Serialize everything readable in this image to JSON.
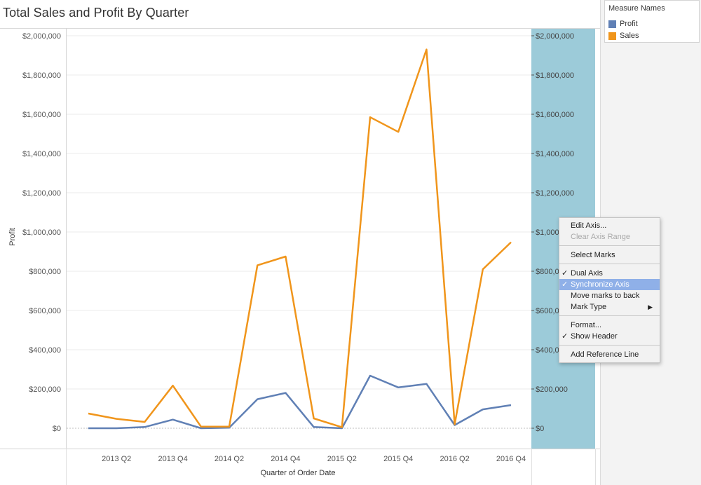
{
  "title": "Total Sales and Profit By Quarter",
  "legend": {
    "title": "Measure Names",
    "items": [
      {
        "label": "Profit",
        "color": "#6080b5"
      },
      {
        "label": "Sales",
        "color": "#f0951b"
      }
    ]
  },
  "chart_data": {
    "type": "line",
    "title": "Total Sales and Profit By Quarter",
    "xlabel": "Quarter of Order Date",
    "ylabel": "Profit",
    "x": [
      "2013 Q1",
      "2013 Q2",
      "2013 Q3",
      "2013 Q4",
      "2014 Q1",
      "2014 Q2",
      "2014 Q3",
      "2014 Q4",
      "2015 Q1",
      "2015 Q2",
      "2015 Q3",
      "2015 Q4",
      "2016 Q1",
      "2016 Q2",
      "2016 Q3",
      "2016 Q4"
    ],
    "x_tick_labels": [
      "2013 Q2",
      "2013 Q4",
      "2014 Q2",
      "2014 Q4",
      "2015 Q2",
      "2015 Q4",
      "2016 Q2",
      "2016 Q4"
    ],
    "series": [
      {
        "name": "Profit",
        "color": "#6080b5",
        "values": [
          0,
          0,
          6000,
          44000,
          0,
          3000,
          148000,
          180000,
          6000,
          0,
          268000,
          208000,
          226000,
          16000,
          96000,
          118000
        ]
      },
      {
        "name": "Sales",
        "color": "#f0951b",
        "values": [
          75000,
          48000,
          32000,
          217000,
          8000,
          8000,
          830000,
          875000,
          50000,
          5000,
          1585000,
          1510000,
          1930000,
          20000,
          810000,
          948000
        ]
      }
    ],
    "y_ticks": [
      "$0",
      "$200,000",
      "$400,000",
      "$600,000",
      "$800,000",
      "$1,000,000",
      "$1,200,000",
      "$1,400,000",
      "$1,600,000",
      "$1,800,000",
      "$2,000,000"
    ],
    "ylim": [
      0,
      2000000
    ],
    "dual_axis": true,
    "synchronized_axis": true,
    "grid": true
  },
  "context_menu": {
    "groups": [
      [
        {
          "label": "Edit Axis...",
          "enabled": true
        },
        {
          "label": "Clear Axis Range",
          "enabled": false
        }
      ],
      [
        {
          "label": "Select Marks",
          "enabled": true
        }
      ],
      [
        {
          "label": "Dual Axis",
          "checked": true
        },
        {
          "label": "Synchronize Axis",
          "checked": true,
          "highlighted": true
        },
        {
          "label": "Move marks to back"
        },
        {
          "label": "Mark Type",
          "submenu": true
        }
      ],
      [
        {
          "label": "Format..."
        },
        {
          "label": "Show Header",
          "checked": true
        }
      ],
      [
        {
          "label": "Add Reference Line"
        }
      ]
    ]
  }
}
